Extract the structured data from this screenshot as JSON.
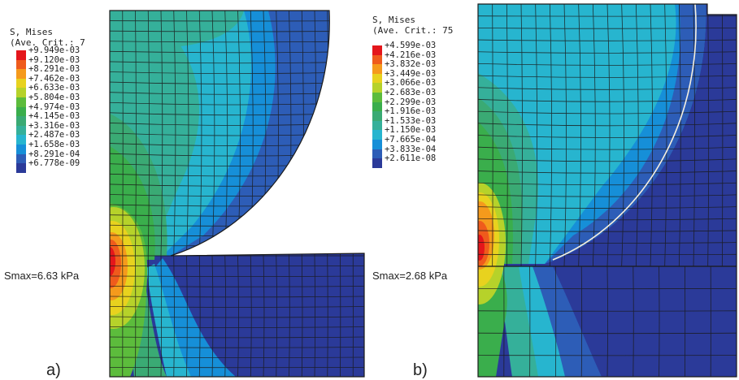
{
  "panels": [
    {
      "id": "a",
      "label": "a)",
      "legend": {
        "title1": "S, Mises",
        "title2": "(Ave. Crit.: 7",
        "values": [
          "+9.949e-03",
          "+9.120e-03",
          "+8.291e-03",
          "+7.462e-03",
          "+6.633e-03",
          "+5.804e-03",
          "+4.974e-03",
          "+4.145e-03",
          "+3.316e-03",
          "+2.487e-03",
          "+1.658e-03",
          "+8.291e-04",
          "+6.778e-09"
        ]
      },
      "smax": "Smax=6.63 kPa"
    },
    {
      "id": "b",
      "label": "b)",
      "legend": {
        "title1": "S, Mises",
        "title2": "(Ave. Crit.: 75",
        "values": [
          "+4.599e-03",
          "+4.216e-03",
          "+3.832e-03",
          "+3.449e-03",
          "+3.066e-03",
          "+2.683e-03",
          "+2.299e-03",
          "+1.916e-03",
          "+1.533e-03",
          "+1.150e-03",
          "+7.665e-04",
          "+3.833e-04",
          "+2.611e-08"
        ]
      },
      "smax": "Smax=2.68 kPa"
    }
  ],
  "colors": {
    "scale": [
      "#e4161b",
      "#ef5b1c",
      "#f59a1c",
      "#e8d21e",
      "#b6d22a",
      "#5cbc3c",
      "#3aae4c",
      "#3aaa74",
      "#35b09a",
      "#27b5cf",
      "#168fd8",
      "#2d5db7",
      "#2b3a99"
    ],
    "mesh": "#1a1a1a"
  }
}
